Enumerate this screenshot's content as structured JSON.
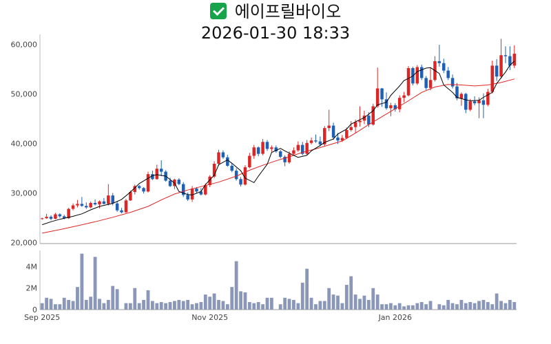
{
  "title": {
    "icon": "check-mark-button-icon",
    "name": "에이프릴바이오",
    "datetime": "2026-01-30 18:33"
  },
  "chart_data": {
    "type": "candlestick",
    "x_tick_labels": [
      "Sep 2025",
      "Nov 2025",
      "Jan 2026"
    ],
    "price_axis": {
      "ylim": [
        19800,
        62000
      ],
      "ticks": [
        20000,
        30000,
        40000,
        50000,
        60000
      ],
      "tick_labels": [
        "20,000",
        "30,000",
        "40,000",
        "50,000",
        "60,000"
      ]
    },
    "volume_axis": {
      "ylim": [
        0,
        5500000
      ],
      "ticks": [
        0,
        2000000,
        4000000
      ],
      "tick_labels": [
        "0",
        "2M",
        "4M"
      ]
    },
    "colors": {
      "up": "#dc2626",
      "down": "#1f5fb4",
      "ma_short": "#000000",
      "ma_long": "#e02424",
      "volume": "#8a97b8"
    },
    "series_names": [
      "",
      ""
    ],
    "candles": [
      [
        24800,
        25000,
        24600,
        24900
      ],
      [
        24900,
        25800,
        24800,
        25200
      ],
      [
        25200,
        25500,
        24500,
        24800
      ],
      [
        24800,
        26000,
        24700,
        25700
      ],
      [
        25700,
        25900,
        25000,
        25300
      ],
      [
        25300,
        25600,
        24700,
        24900
      ],
      [
        24900,
        27000,
        24800,
        26800
      ],
      [
        26800,
        27900,
        26500,
        27500
      ],
      [
        27500,
        28600,
        27100,
        27800
      ],
      [
        27800,
        29200,
        27200,
        27400
      ],
      [
        27400,
        28100,
        26800,
        27100
      ],
      [
        27100,
        28300,
        26900,
        28000
      ],
      [
        28000,
        28700,
        27500,
        27700
      ],
      [
        27700,
        28500,
        26900,
        28300
      ],
      [
        28300,
        29000,
        27700,
        27800
      ],
      [
        27800,
        31800,
        27500,
        29500
      ],
      [
        29500,
        30000,
        27500,
        27900
      ],
      [
        27900,
        28300,
        26200,
        26500
      ],
      [
        26500,
        27000,
        25900,
        26100
      ],
      [
        26100,
        28800,
        26000,
        28500
      ],
      [
        28500,
        30500,
        28400,
        30200
      ],
      [
        30200,
        31700,
        29700,
        31400
      ],
      [
        31400,
        31600,
        30700,
        31000
      ],
      [
        31000,
        31200,
        29900,
        30300
      ],
      [
        30300,
        34300,
        30100,
        33800
      ],
      [
        33800,
        34500,
        32600,
        32800
      ],
      [
        32800,
        35700,
        32700,
        34900
      ],
      [
        34900,
        36600,
        33400,
        34300
      ],
      [
        34300,
        34600,
        32300,
        32500
      ],
      [
        32500,
        33100,
        31200,
        31400
      ],
      [
        31400,
        32900,
        30800,
        32700
      ],
      [
        32700,
        33000,
        31600,
        31800
      ],
      [
        31800,
        32200,
        29200,
        29600
      ],
      [
        29600,
        30100,
        28400,
        28700
      ],
      [
        28700,
        31400,
        28200,
        30900
      ],
      [
        30900,
        31200,
        30000,
        30300
      ],
      [
        30300,
        31000,
        29500,
        29700
      ],
      [
        29700,
        31900,
        29500,
        31600
      ],
      [
        31600,
        33600,
        31200,
        33300
      ],
      [
        33300,
        36400,
        33000,
        35900
      ],
      [
        35900,
        38700,
        35500,
        38200
      ],
      [
        38200,
        38600,
        36900,
        37200
      ],
      [
        37200,
        37700,
        35300,
        35500
      ],
      [
        35500,
        36000,
        34200,
        34500
      ],
      [
        34500,
        35000,
        32500,
        32800
      ],
      [
        32800,
        33200,
        31300,
        31700
      ],
      [
        31700,
        35600,
        31500,
        35200
      ],
      [
        35200,
        38100,
        35000,
        37500
      ],
      [
        37500,
        39700,
        36900,
        39200
      ],
      [
        39200,
        39400,
        37400,
        37900
      ],
      [
        37900,
        40900,
        37600,
        40300
      ],
      [
        40300,
        40700,
        38500,
        38900
      ],
      [
        38900,
        39600,
        38300,
        39200
      ],
      [
        39200,
        39600,
        38100,
        38400
      ],
      [
        38400,
        38700,
        37000,
        37300
      ],
      [
        37300,
        37600,
        35400,
        36200
      ],
      [
        36200,
        38400,
        35900,
        37900
      ],
      [
        37900,
        39200,
        37600,
        38600
      ],
      [
        38600,
        40400,
        38300,
        39700
      ],
      [
        39700,
        40300,
        37600,
        37900
      ],
      [
        37900,
        40700,
        37700,
        40100
      ],
      [
        40100,
        41200,
        39800,
        40600
      ],
      [
        40600,
        41800,
        40100,
        40400
      ],
      [
        40400,
        41400,
        39400,
        39800
      ],
      [
        39800,
        43500,
        39500,
        43100
      ],
      [
        43100,
        46800,
        42500,
        43600
      ],
      [
        43600,
        44200,
        40700,
        41200
      ],
      [
        41200,
        42100,
        39900,
        40600
      ],
      [
        40600,
        41700,
        40300,
        41100
      ],
      [
        41100,
        43200,
        40900,
        42700
      ],
      [
        42700,
        44500,
        42400,
        43300
      ],
      [
        43300,
        44800,
        42100,
        44300
      ],
      [
        44300,
        47500,
        43400,
        44600
      ],
      [
        44600,
        46600,
        43900,
        45600
      ],
      [
        45600,
        46300,
        43300,
        43800
      ],
      [
        43800,
        48000,
        43600,
        47500
      ],
      [
        47500,
        55300,
        47200,
        51100
      ],
      [
        51100,
        51200,
        47400,
        48900
      ],
      [
        48900,
        50300,
        46800,
        47100
      ],
      [
        47100,
        48200,
        45500,
        47700
      ],
      [
        47700,
        48100,
        46400,
        46900
      ],
      [
        46900,
        49700,
        46300,
        49200
      ],
      [
        49200,
        50400,
        48300,
        49700
      ],
      [
        49700,
        55600,
        49500,
        55200
      ],
      [
        55200,
        55500,
        51700,
        52100
      ],
      [
        52100,
        55800,
        51800,
        55400
      ],
      [
        55400,
        55900,
        52800,
        53200
      ],
      [
        53200,
        53600,
        50800,
        51200
      ],
      [
        51200,
        55300,
        50700,
        52800
      ],
      [
        52800,
        57600,
        52500,
        56600
      ],
      [
        56600,
        59900,
        55500,
        56200
      ],
      [
        56200,
        57100,
        54200,
        54700
      ],
      [
        54700,
        55400,
        52800,
        53200
      ],
      [
        53200,
        53900,
        51100,
        51500
      ],
      [
        51500,
        52200,
        48700,
        49100
      ],
      [
        49100,
        50300,
        47600,
        50000
      ],
      [
        50000,
        50200,
        46100,
        46800
      ],
      [
        46800,
        49000,
        46500,
        48500
      ],
      [
        48500,
        49500,
        47700,
        48100
      ],
      [
        48100,
        49300,
        45100,
        48700
      ],
      [
        48700,
        50100,
        45100,
        47800
      ],
      [
        47800,
        51000,
        47500,
        50400
      ],
      [
        50400,
        56700,
        50100,
        55700
      ],
      [
        55700,
        57000,
        52600,
        53500
      ],
      [
        53500,
        61100,
        53100,
        57800
      ],
      [
        57800,
        59600,
        56200,
        57600
      ],
      [
        57600,
        59600,
        54800,
        55700
      ],
      [
        55700,
        59800,
        55200,
        58100
      ]
    ],
    "ma_short": [
      [
        23600,
        0
      ],
      [
        24200,
        3
      ],
      [
        24700,
        6
      ],
      [
        25300,
        9
      ],
      [
        25800,
        12
      ],
      [
        26600,
        15
      ],
      [
        27300,
        18
      ],
      [
        27900,
        21
      ],
      [
        28700,
        24
      ],
      [
        30200,
        27
      ],
      [
        31900,
        30
      ],
      [
        33500,
        33
      ],
      [
        33700,
        35
      ],
      [
        33400,
        37
      ],
      [
        32000,
        40
      ],
      [
        30300,
        42
      ],
      [
        29700,
        44
      ],
      [
        29600,
        46
      ],
      [
        30300,
        48
      ],
      [
        31700,
        50
      ],
      [
        33600,
        52
      ],
      [
        35700,
        54
      ],
      [
        36700,
        56
      ],
      [
        36000,
        58
      ],
      [
        34500,
        60
      ],
      [
        33000,
        62
      ],
      [
        32100,
        64
      ],
      [
        33400,
        66
      ],
      [
        35800,
        68
      ],
      [
        38200,
        70
      ],
      [
        39000,
        72
      ],
      [
        38500,
        74
      ],
      [
        37600,
        76
      ],
      [
        37200,
        78
      ],
      [
        37600,
        80
      ],
      [
        38500,
        82
      ],
      [
        39600,
        84
      ],
      [
        40200,
        86
      ],
      [
        40900,
        88
      ],
      [
        41900,
        90
      ],
      [
        42900,
        92
      ],
      [
        43900,
        94
      ],
      [
        44800,
        96
      ],
      [
        45200,
        98
      ],
      [
        46600,
        100
      ],
      [
        47800,
        102
      ],
      [
        48300,
        104
      ],
      [
        49700,
        106
      ],
      [
        51600,
        108
      ],
      [
        52700,
        110
      ],
      [
        53100,
        111
      ],
      [
        53600,
        112
      ],
      [
        54500,
        114
      ],
      [
        55200,
        116
      ],
      [
        55300,
        118
      ],
      [
        54100,
        120
      ],
      [
        51800,
        122
      ],
      [
        50300,
        124
      ],
      [
        49300,
        126
      ],
      [
        48800,
        128
      ],
      [
        48600,
        130
      ],
      [
        48700,
        132
      ],
      [
        49300,
        134
      ],
      [
        50300,
        136
      ],
      [
        52100,
        138
      ],
      [
        54400,
        140
      ],
      [
        55800,
        142
      ],
      [
        56600,
        143
      ]
    ],
    "ma_long": [
      [
        21900,
        0
      ],
      [
        22600,
        8
      ],
      [
        23400,
        16
      ],
      [
        24200,
        24
      ],
      [
        25100,
        32
      ],
      [
        26100,
        40
      ],
      [
        27300,
        48
      ],
      [
        28600,
        54
      ],
      [
        29800,
        60
      ],
      [
        30600,
        66
      ],
      [
        31300,
        72
      ],
      [
        32200,
        80
      ],
      [
        33400,
        88
      ],
      [
        34600,
        94
      ],
      [
        35600,
        100
      ],
      [
        36500,
        106
      ],
      [
        37300,
        112
      ],
      [
        38200,
        118
      ],
      [
        38900,
        124
      ],
      [
        39700,
        130
      ],
      [
        40500,
        136
      ],
      [
        42100,
        142
      ],
      [
        43800,
        148
      ],
      [
        45400,
        154
      ],
      [
        47000,
        160
      ],
      [
        48600,
        166
      ],
      [
        50300,
        172
      ],
      [
        51400,
        178
      ],
      [
        51900,
        184
      ],
      [
        51800,
        190
      ],
      [
        51600,
        196
      ],
      [
        51800,
        202
      ],
      [
        52300,
        208
      ],
      [
        53000,
        214
      ]
    ],
    "volume": [
      0.6,
      1.1,
      1.0,
      0.5,
      0.5,
      1.1,
      0.9,
      0.8,
      2.1,
      5.2,
      0.9,
      1.2,
      4.9,
      1.0,
      0.6,
      0.9,
      2.2,
      1.9,
      0.6,
      0.6,
      2.0,
      0.6,
      0.9,
      1.8,
      0.8,
      0.6,
      0.7,
      0.6,
      0.7,
      0.8,
      0.9,
      0.8,
      0.9,
      0.5,
      0.6,
      0.7,
      1.4,
      1.2,
      1.5,
      0.9,
      0.8,
      0.5,
      2.1,
      4.5,
      1.7,
      1.6,
      0.7,
      0.6,
      0.7,
      0.5,
      1.1,
      1.1,
      0.5,
      1.1,
      1.0,
      0.9,
      0.6,
      2.5,
      3.8,
      1.1,
      0.5,
      0.8,
      0.8,
      2.0,
      1.4,
      1.3,
      0.6,
      2.3,
      3.1,
      1.4,
      1.0,
      1.3,
      0.9,
      2.0,
      1.4,
      0.5,
      0.5,
      0.6,
      0.4,
      0.6,
      0.3,
      0.4,
      0.4,
      0.6,
      0.7,
      0.5,
      0.8,
      0.5,
      0.4,
      0.9,
      0.6,
      0.5,
      0.9,
      0.6,
      0.7,
      0.6,
      0.8,
      0.9,
      0.7,
      0.5,
      1.5,
      0.8,
      0.6,
      0.9,
      0.7
    ]
  }
}
